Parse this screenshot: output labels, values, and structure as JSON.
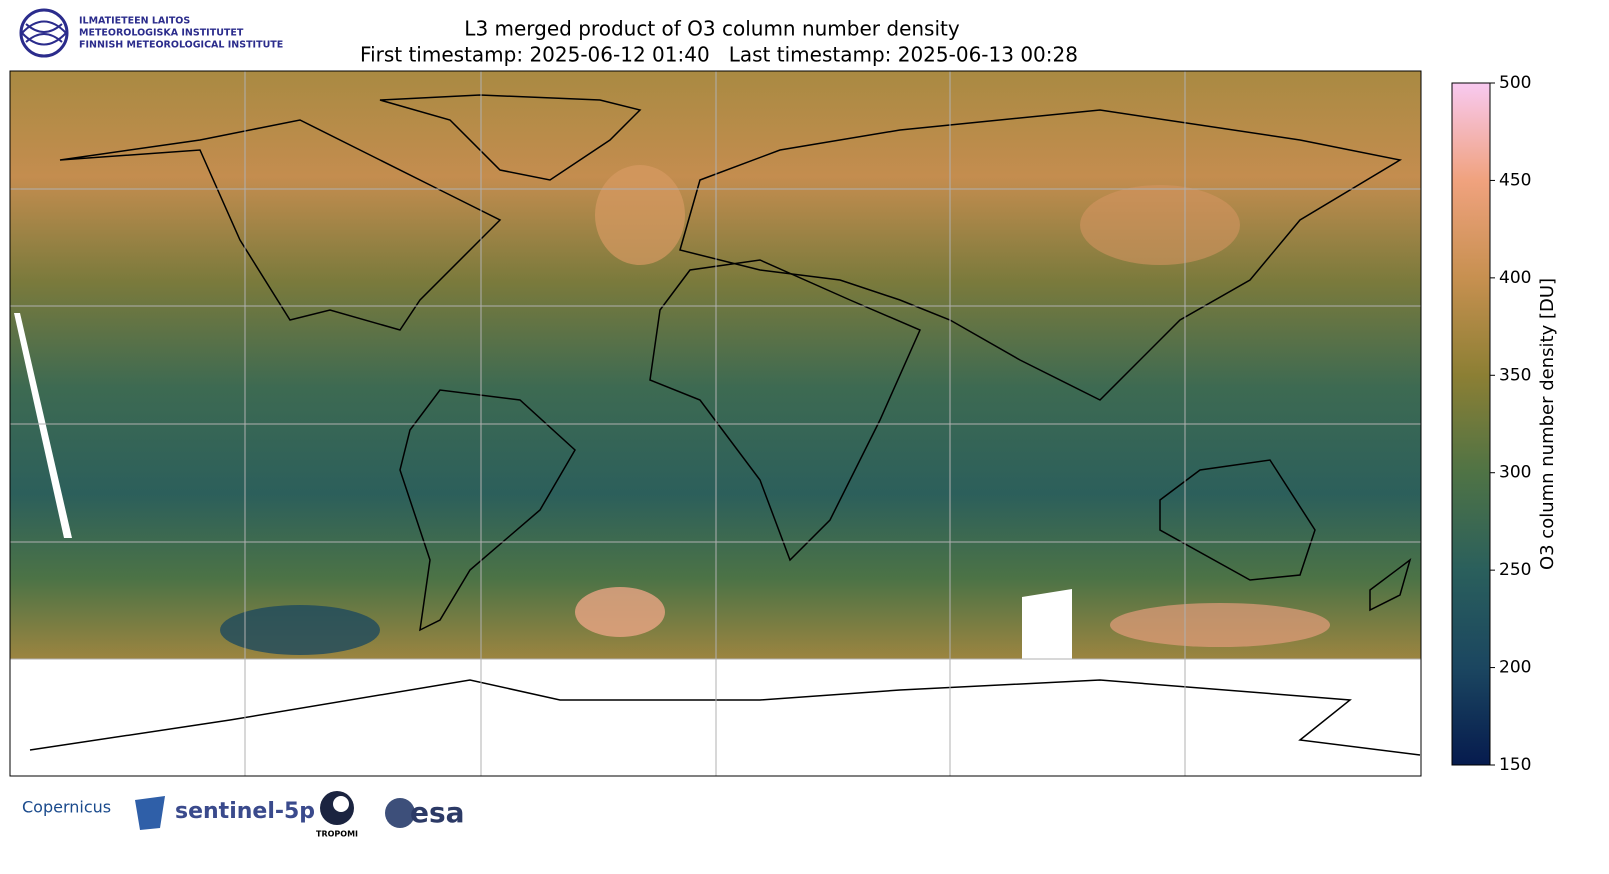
{
  "header": {
    "title": "L3 merged product of O3 column number density",
    "subtitle": "First timestamp: 2025-06-12 01:40   Last timestamp: 2025-06-13 00:28"
  },
  "logo": {
    "lines": [
      "ILMATIETEEN LAITOS",
      "METEOROLOGISKA INSTITUTET",
      "FINNISH METEOROLOGICAL INSTITUTE"
    ]
  },
  "colorbar": {
    "label": "O3 column number density [DU]",
    "lim": [
      150,
      500
    ],
    "ticks": [
      150,
      200,
      250,
      300,
      350,
      400,
      450,
      500
    ],
    "colormap": [
      "#061b4e",
      "#1b4660",
      "#2a5f5c",
      "#4f7345",
      "#8c7f34",
      "#c79050",
      "#f0a27e",
      "#f8c9f0"
    ]
  },
  "footer": {
    "logos": [
      "Copernicus",
      "sentinel-5p",
      "TROPOMI",
      "esa"
    ]
  }
}
